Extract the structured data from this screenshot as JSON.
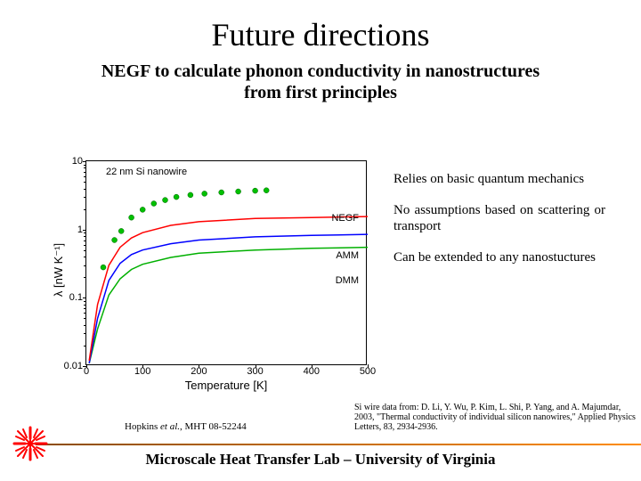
{
  "title": "Future directions",
  "subtitle_l1": "NEGF to calculate phonon conductivity in nanostructures",
  "subtitle_l2": "from first principles",
  "bullets": {
    "b1": "Relies on basic quantum mechanics",
    "b2": "No assumptions based on scattering or transport",
    "b3": "Can be extended to any nanostuctures"
  },
  "ref_left_pre": "Hopkins ",
  "ref_left_ital": "et al.",
  "ref_left_post": ", MHT 08-52244",
  "ref_right": "Si wire data from: D. Li, Y. Wu, P. Kim, L. Shi, P. Yang, and A. Majumdar, 2003, \"Thermal conductivity of individual silicon nanowires,\" Applied Physics Letters, 83, 2934-2936.",
  "footer": "Microscale Heat Transfer Lab – University of Virginia",
  "chart": {
    "type": "line+scatter",
    "ylabel": "λ [nW K⁻¹]",
    "xlabel": "Temperature [K]",
    "xlim": [
      0,
      500
    ],
    "xticks": [
      0,
      100,
      200,
      300,
      400,
      500
    ],
    "ylim_log": [
      0.01,
      10
    ],
    "yticks": [
      0.01,
      0.1,
      1,
      10
    ],
    "annot_data": "22 nm Si nanowire",
    "annot_negf": "NEGF",
    "annot_amm": "AMM",
    "annot_dmm": "DMM",
    "background_color": "#ffffff",
    "axis_color": "#000000",
    "scatter": {
      "color": "#00c000",
      "marker": "circle",
      "size": 6,
      "points_x": [
        30,
        50,
        62,
        80,
        100,
        120,
        140,
        160,
        185,
        210,
        240,
        270,
        300,
        320
      ],
      "points_y": [
        0.28,
        0.7,
        0.95,
        1.5,
        1.95,
        2.4,
        2.7,
        3.0,
        3.2,
        3.35,
        3.5,
        3.6,
        3.7,
        3.75
      ]
    },
    "lines": {
      "negf": {
        "color": "#ff0000",
        "width": 1.5,
        "x": [
          5,
          20,
          40,
          60,
          80,
          100,
          150,
          200,
          300,
          400,
          500
        ],
        "y": [
          0.012,
          0.08,
          0.3,
          0.55,
          0.75,
          0.9,
          1.15,
          1.3,
          1.45,
          1.5,
          1.55
        ]
      },
      "amm": {
        "color": "#0000ff",
        "width": 1.5,
        "x": [
          5,
          20,
          40,
          60,
          80,
          100,
          150,
          200,
          300,
          400,
          500
        ],
        "y": [
          0.011,
          0.05,
          0.18,
          0.32,
          0.43,
          0.5,
          0.62,
          0.7,
          0.78,
          0.82,
          0.85
        ]
      },
      "dmm": {
        "color": "#00b000",
        "width": 1.5,
        "x": [
          5,
          20,
          40,
          60,
          80,
          100,
          150,
          200,
          300,
          400,
          500
        ],
        "y": [
          0.011,
          0.035,
          0.11,
          0.19,
          0.26,
          0.31,
          0.39,
          0.45,
          0.5,
          0.53,
          0.55
        ]
      }
    }
  }
}
